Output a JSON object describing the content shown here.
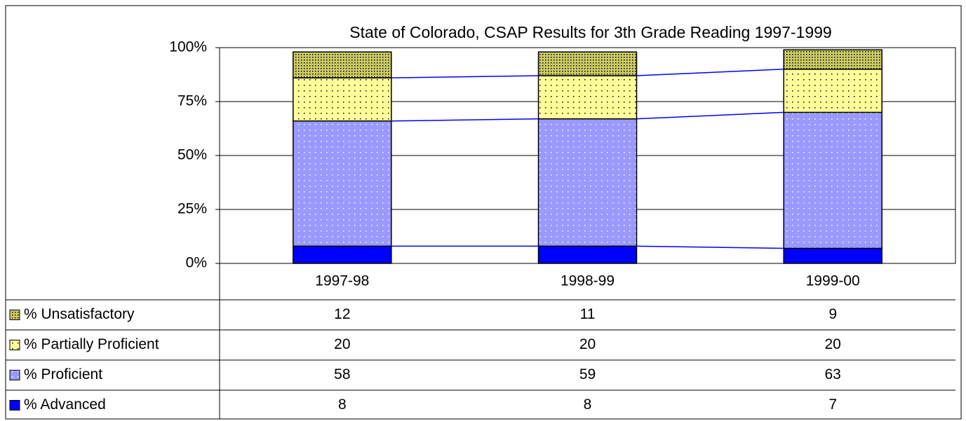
{
  "chart_data": {
    "type": "stacked-bar",
    "title": "State of Colorado,  CSAP Results for 3th Grade Reading  1997-1999",
    "categories": [
      "1997-98",
      "1998-99",
      "1999-00"
    ],
    "series": [
      {
        "name": "% Unsatisfactory",
        "color": "#cccc66",
        "values": [
          12,
          11,
          9
        ]
      },
      {
        "name": "% Partially Proficient",
        "color": "#ffff99",
        "values": [
          20,
          20,
          20
        ]
      },
      {
        "name": "% Proficient",
        "color": "#9999ff",
        "values": [
          58,
          59,
          63
        ]
      },
      {
        "name": "% Advanced",
        "color": "#0000ff",
        "values": [
          8,
          8,
          7
        ]
      }
    ],
    "ylim": [
      0,
      100
    ],
    "yticks": [
      {
        "value": 0,
        "label": "0%"
      },
      {
        "value": 25,
        "label": "25%"
      },
      {
        "value": 50,
        "label": "50%"
      },
      {
        "value": 75,
        "label": "75%"
      },
      {
        "value": 100,
        "label": "100%"
      }
    ],
    "grid": true
  }
}
